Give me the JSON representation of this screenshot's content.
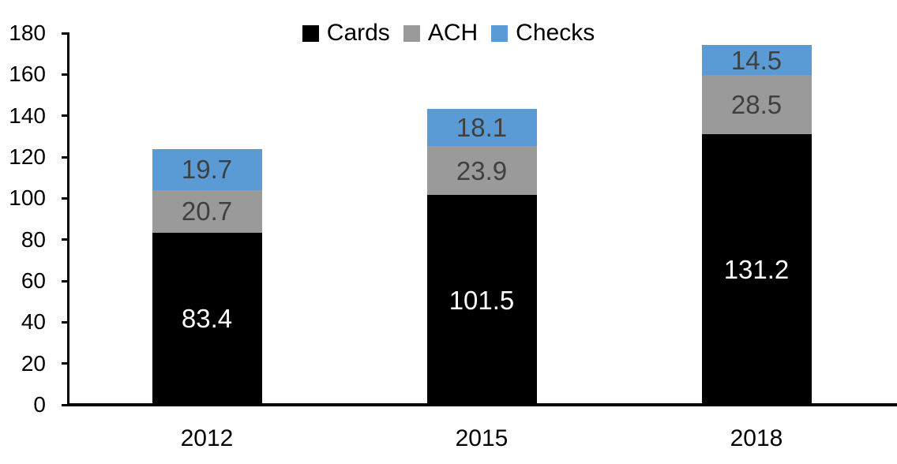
{
  "chart_data": {
    "type": "bar",
    "stacked": true,
    "title": "",
    "xlabel": "",
    "ylabel": "",
    "categories": [
      "2012",
      "2015",
      "2018"
    ],
    "series": [
      {
        "name": "Cards",
        "color": "#000000",
        "label_color": "#FFFFFF",
        "values": [
          83.4,
          101.5,
          131.2
        ]
      },
      {
        "name": "ACH",
        "color": "#9A9A9A",
        "label_color": "#404040",
        "values": [
          20.7,
          23.9,
          28.5
        ]
      },
      {
        "name": "Checks",
        "color": "#5B9BD5",
        "label_color": "#404040",
        "values": [
          19.7,
          18.1,
          14.5
        ]
      }
    ],
    "ylim": [
      0,
      180
    ],
    "ytick_interval": 20,
    "yticks": [
      0,
      20,
      40,
      60,
      80,
      100,
      120,
      140,
      160,
      180
    ],
    "legend_position": "top",
    "grid": false,
    "axis_color": "#000000",
    "background_color": "#FFFFFF"
  }
}
